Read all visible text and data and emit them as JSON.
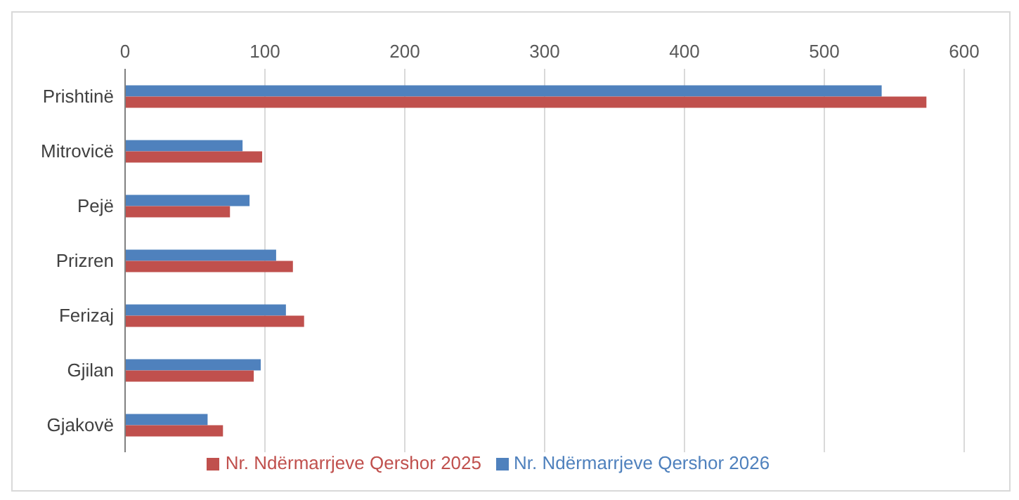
{
  "chart_data": {
    "type": "bar",
    "orientation": "horizontal",
    "categories": [
      "Prishtinë",
      "Mitrovicë",
      "Pejë",
      "Prizren",
      "Ferizaj",
      "Gjilan",
      "Gjakovë"
    ],
    "series": [
      {
        "name": "Nr. Ndërmarrjeve Qershor 2026",
        "color": "#4f81bd",
        "values": [
          541,
          84,
          89,
          108,
          115,
          97,
          59
        ]
      },
      {
        "name": "Nr. Ndërmarrjeve Qershor 2025",
        "color": "#c0504d",
        "values": [
          573,
          98,
          75,
          120,
          128,
          92,
          70
        ]
      }
    ],
    "xlim": [
      0,
      600
    ],
    "xticks": [
      0,
      100,
      200,
      300,
      400,
      500,
      600
    ],
    "grid": "x",
    "legend": "bottom"
  }
}
